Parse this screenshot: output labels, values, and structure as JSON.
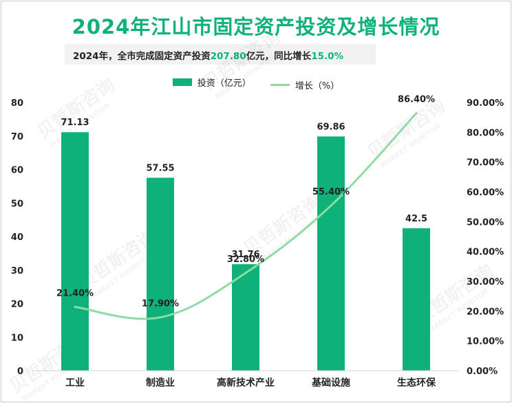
{
  "title": "2024年江山市固定资产投资及增长情况",
  "subtitle": {
    "prefix": "2024年，全市完成固定资产投资",
    "value1": "207.80",
    "middle": "亿元，同比增长",
    "value2": "15.0%"
  },
  "legend": {
    "bar_label": "投资（亿元）",
    "line_label": "增长（%）"
  },
  "watermark": {
    "cn": "贝哲斯咨询",
    "en": "MARKET MONITOR"
  },
  "colors": {
    "bar": "#0fb17a",
    "line": "#8edba6",
    "title": "#0fb17a"
  },
  "chart_data": {
    "type": "bar",
    "categories": [
      "工业",
      "制造业",
      "高新技术产业",
      "基础设施",
      "生态环保"
    ],
    "series": [
      {
        "name": "投资（亿元）",
        "type": "bar",
        "axis": "left",
        "values": [
          71.13,
          57.55,
          31.76,
          69.86,
          42.5
        ],
        "labels": [
          "71.13",
          "57.55",
          "31.76",
          "69.86",
          "42.5"
        ]
      },
      {
        "name": "增长（%）",
        "type": "line",
        "axis": "right",
        "values": [
          21.4,
          17.9,
          32.8,
          55.4,
          86.4
        ],
        "labels": [
          "21.40%",
          "17.90%",
          "32.80%",
          "55.40%",
          "86.40%"
        ]
      }
    ],
    "ylim_left": [
      0,
      80
    ],
    "ylim_right": [
      0,
      90
    ],
    "yticks_left": [
      "0",
      "10",
      "20",
      "30",
      "40",
      "50",
      "60",
      "70",
      "80"
    ],
    "yticks_right": [
      "0.00%",
      "10.00%",
      "20.00%",
      "30.00%",
      "40.00%",
      "50.00%",
      "60.00%",
      "70.00%",
      "80.00%",
      "90.00%"
    ],
    "grid": false,
    "legend_position": "top"
  }
}
